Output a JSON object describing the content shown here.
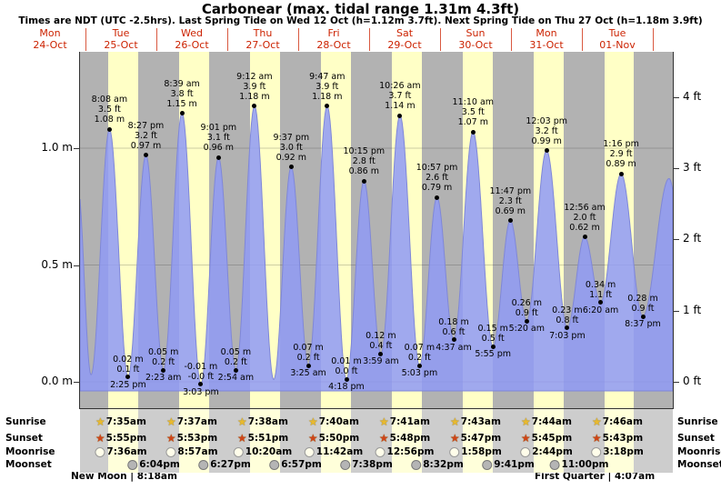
{
  "header": {
    "title": "Carbonear (max. tidal range 1.31m 4.3ft)",
    "subtitle": "Times are NDT (UTC -2.5hrs). Last Spring Tide on Wed 12 Oct (h=1.12m 3.7ft). Next Spring Tide on Thu 27 Oct (h=1.18m 3.9ft)"
  },
  "days": [
    {
      "name": "Mon",
      "date": "24-Oct"
    },
    {
      "name": "Tue",
      "date": "25-Oct"
    },
    {
      "name": "Wed",
      "date": "26-Oct"
    },
    {
      "name": "Thu",
      "date": "27-Oct"
    },
    {
      "name": "Fri",
      "date": "28-Oct"
    },
    {
      "name": "Sat",
      "date": "29-Oct"
    },
    {
      "name": "Sun",
      "date": "30-Oct"
    },
    {
      "name": "Mon",
      "date": "31-Oct"
    },
    {
      "name": "Tue",
      "date": "01-Nov"
    }
  ],
  "axes": {
    "left_ticks": [
      {
        "label": "0.0 m",
        "m": 0.0
      },
      {
        "label": "0.5 m",
        "m": 0.5
      },
      {
        "label": "1.0 m",
        "m": 1.0
      }
    ],
    "right_ticks": [
      {
        "label": "0 ft",
        "ft": 0
      },
      {
        "label": "1 ft",
        "ft": 1
      },
      {
        "label": "2 ft",
        "ft": 2
      },
      {
        "label": "3 ft",
        "ft": 3
      },
      {
        "label": "4 ft",
        "ft": 4
      }
    ]
  },
  "chart_data": {
    "type": "area",
    "title": "Carbonear (max. tidal range 1.31m 4.3ft)",
    "ylabel_left": "m",
    "ylabel_right": "ft",
    "ylim_m": [
      -0.12,
      1.41
    ],
    "x_range": "Mon 24-Oct through Tue 01-Nov (partial days at both edges)",
    "background_bands": "yellow = daylight hours, grey = night",
    "high_tides": [
      {
        "day": 1,
        "time": "8:08 am",
        "ft": "3.5 ft",
        "m": "1.08 m"
      },
      {
        "day": 1,
        "time": "8:27 pm",
        "ft": "3.2 ft",
        "m": "0.97 m"
      },
      {
        "day": 2,
        "time": "8:39 am",
        "ft": "3.8 ft",
        "m": "1.15 m"
      },
      {
        "day": 2,
        "time": "9:01 pm",
        "ft": "3.1 ft",
        "m": "0.96 m"
      },
      {
        "day": 3,
        "time": "9:12 am",
        "ft": "3.9 ft",
        "m": "1.18 m"
      },
      {
        "day": 3,
        "time": "9:37 pm",
        "ft": "3.0 ft",
        "m": "0.92 m"
      },
      {
        "day": 4,
        "time": "9:47 am",
        "ft": "3.9 ft",
        "m": "1.18 m"
      },
      {
        "day": 4,
        "time": "10:15 pm",
        "ft": "2.8 ft",
        "m": "0.86 m"
      },
      {
        "day": 5,
        "time": "10:26 am",
        "ft": "3.7 ft",
        "m": "1.14 m"
      },
      {
        "day": 5,
        "time": "10:57 pm",
        "ft": "2.6 ft",
        "m": "0.79 m"
      },
      {
        "day": 6,
        "time": "11:10 am",
        "ft": "3.5 ft",
        "m": "1.07 m"
      },
      {
        "day": 6,
        "time": "11:47 pm",
        "ft": "2.3 ft",
        "m": "0.69 m"
      },
      {
        "day": 7,
        "time": "12:03 pm",
        "ft": "3.2 ft",
        "m": "0.99 m"
      },
      {
        "day": 8,
        "time": "12:56 am",
        "ft": "2.0 ft",
        "m": "0.62 m"
      },
      {
        "day": 8,
        "time": "1:16 pm",
        "ft": "2.9 ft",
        "m": "0.89 m"
      }
    ],
    "low_tides": [
      {
        "day": 1,
        "m": "0.02 m",
        "ft": "0.1 ft",
        "time": "2:25 pm"
      },
      {
        "day": 2,
        "m": "0.05 m",
        "ft": "0.2 ft",
        "time": "2:23 am"
      },
      {
        "day": 2,
        "m": "-0.01 m",
        "ft": "-0.0 ft",
        "time": "3:03 pm"
      },
      {
        "day": 3,
        "m": "0.05 m",
        "ft": "0.2 ft",
        "time": "2:54 am"
      },
      {
        "day": 4,
        "m": "0.07 m",
        "ft": "0.2 ft",
        "time": "3:25 am"
      },
      {
        "day": 4,
        "m": "0.01 m",
        "ft": "0.0 ft",
        "time": "4:18 pm"
      },
      {
        "day": 5,
        "m": "0.12 m",
        "ft": "0.4 ft",
        "time": "3:59 am"
      },
      {
        "day": 5,
        "m": "0.07 m",
        "ft": "0.2 ft",
        "time": "5:03 pm"
      },
      {
        "day": 6,
        "m": "0.18 m",
        "ft": "0.6 ft",
        "time": "4:37 am"
      },
      {
        "day": 6,
        "m": "0.15 m",
        "ft": "0.5 ft",
        "time": "5:55 pm"
      },
      {
        "day": 7,
        "m": "0.26 m",
        "ft": "0.9 ft",
        "time": "5:20 am"
      },
      {
        "day": 7,
        "m": "0.23 m",
        "ft": "0.8 ft",
        "time": "7:03 pm"
      },
      {
        "day": 8,
        "m": "0.34 m",
        "ft": "1.1 ft",
        "time": "6:20 am"
      },
      {
        "day": 8,
        "m": "0.28 m",
        "ft": "0.9 ft",
        "time": "8:37 pm"
      }
    ],
    "edge_points_estimated": [
      {
        "hours": 21.3,
        "height_m": 0.85
      },
      {
        "hours": 25.9,
        "height_m": 0.03
      },
      {
        "hours": 87.7,
        "height_m": 0.01
      },
      {
        "hours": 221.5,
        "height_m": 0.87
      },
      {
        "hours": 228.0,
        "height_m": 0.3
      }
    ]
  },
  "astro": {
    "row_labels": [
      "Sunrise",
      "Sunset",
      "Moonrise",
      "Moonset"
    ],
    "sunrise_times": [
      "7:35am",
      "7:37am",
      "7:38am",
      "7:40am",
      "7:41am",
      "7:43am",
      "7:44am",
      "7:46am"
    ],
    "sunset_times": [
      "5:55pm",
      "5:53pm",
      "5:51pm",
      "5:50pm",
      "5:48pm",
      "5:47pm",
      "5:45pm",
      "5:43pm"
    ],
    "moonrise_times": [
      "7:36am",
      "8:57am",
      "10:20am",
      "11:42am",
      "12:56pm",
      "1:58pm",
      "2:44pm",
      "3:18pm"
    ],
    "moonset_times": [
      "6:04pm",
      "6:27pm",
      "6:57pm",
      "7:38pm",
      "8:32pm",
      "9:41pm",
      "11:00pm"
    ],
    "events": {
      "left": "New Moon | 8:18am",
      "right": "First Quarter | 4:07am"
    }
  },
  "colors": {
    "curve_fill": "#8f9af5",
    "curve_edge": "#7f87d8",
    "day_band": "#ffffc6",
    "night_plot": "#b2b2b2",
    "night_strip": "#cdcdcd",
    "day_band_strip": "#ffffda",
    "label_red": "#cc2200",
    "sunrise_star": "#e8b92e",
    "sunset_star": "#cf4418"
  }
}
